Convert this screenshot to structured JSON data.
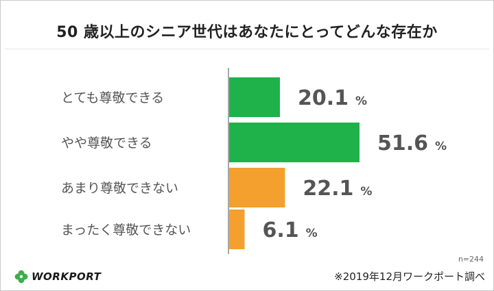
{
  "chart_data": {
    "type": "bar",
    "orientation": "horizontal",
    "title": "50 歳以上のシニア世代はあなたにとってどんな存在か",
    "categories": [
      "とても尊敬できる",
      "やや尊敬できる",
      "あまり尊敬できない",
      "まったく尊敬できない"
    ],
    "values": [
      20.1,
      51.6,
      22.1,
      6.1
    ],
    "value_labels": [
      "20.1",
      "51.6",
      "22.1",
      "6.1"
    ],
    "unit": "%",
    "bar_colors": [
      "#1fb24a",
      "#1fb24a",
      "#f3a02e",
      "#f3a02e"
    ],
    "xlim": [
      0,
      51.6
    ],
    "grid": false,
    "legend": "none"
  },
  "footer": {
    "sample": "n=244",
    "source": "※2019年12月ワークポート調べ",
    "logo_text": "WORKPORT",
    "logo_color": "#3fae49"
  }
}
